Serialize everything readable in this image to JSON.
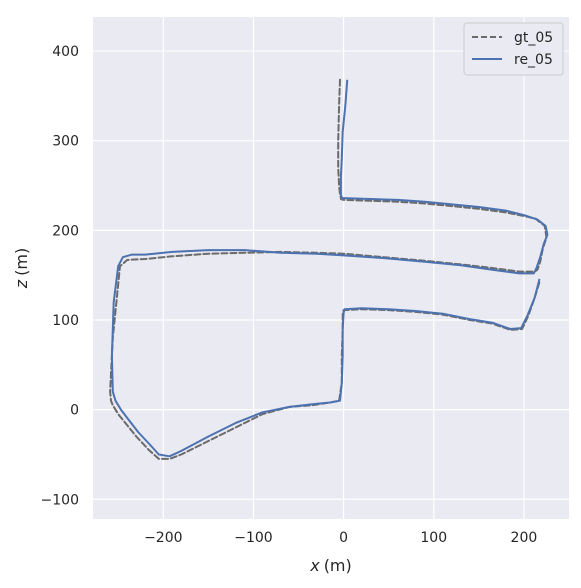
{
  "chart_data": {
    "type": "line",
    "xlabel_var": "x",
    "xlabel_unit": "(m)",
    "ylabel_var": "z",
    "ylabel_unit": "(m)",
    "xlim": [
      -278,
      250
    ],
    "ylim": [
      -122,
      438
    ],
    "xticks": [
      -200,
      -100,
      0,
      100,
      200
    ],
    "yticks": [
      -100,
      0,
      100,
      200,
      300,
      400
    ],
    "grid": true,
    "legend_position": "top-right",
    "background": "#eaeaf2",
    "series": [
      {
        "name": "gt_05",
        "style": "dashed",
        "color": "#6b6b6b",
        "x": [
          -4,
          -5,
          -6,
          -6,
          -5,
          -4,
          -3,
          -3,
          0,
          30,
          60,
          90,
          120,
          150,
          180,
          200,
          213,
          223,
          225,
          221,
          218,
          215,
          212,
          195,
          165,
          130,
          90,
          45,
          0,
          -30,
          -70,
          -110,
          -150,
          -190,
          -220,
          -240,
          -248,
          -252,
          -256,
          -258,
          -259,
          -258,
          -256,
          -250,
          -242,
          -230,
          -216,
          -205,
          -193,
          -180,
          -150,
          -120,
          -90,
          -60,
          -35,
          -15,
          -5,
          -2,
          -2,
          -1,
          -1,
          0,
          20,
          50,
          80,
          110,
          140,
          165,
          185,
          198,
          205,
          212,
          218
        ],
        "y": [
          368,
          340,
          300,
          270,
          250,
          240,
          236,
          235,
          234,
          233,
          232,
          230,
          227,
          224,
          220,
          216,
          213,
          205,
          192,
          180,
          165,
          156,
          154,
          154,
          158,
          162,
          166,
          170,
          174,
          175,
          176,
          175,
          174,
          171,
          168,
          167,
          160,
          120,
          80,
          40,
          20,
          10,
          5,
          -5,
          -15,
          -30,
          -45,
          -55,
          -55,
          -50,
          -35,
          -20,
          -5,
          3,
          5,
          8,
          10,
          30,
          60,
          90,
          108,
          111,
          112,
          111,
          109,
          106,
          100,
          96,
          89,
          90,
          105,
          125,
          145
        ]
      },
      {
        "name": "re_05",
        "style": "solid",
        "color": "#4c72b0",
        "x": [
          4,
          2,
          -1,
          -2,
          -3,
          -3,
          -2,
          0,
          30,
          60,
          90,
          120,
          150,
          180,
          200,
          215,
          224,
          226,
          222,
          218,
          214,
          211,
          195,
          165,
          130,
          90,
          45,
          0,
          -30,
          -70,
          -110,
          -150,
          -190,
          -220,
          -235,
          -245,
          -250,
          -255,
          -257,
          -256,
          -253,
          -247,
          -238,
          -228,
          -214,
          -205,
          -193,
          -180,
          -150,
          -120,
          -90,
          -60,
          -35,
          -15,
          -4,
          -2,
          -1,
          -1,
          0,
          1,
          20,
          50,
          80,
          110,
          140,
          165,
          185,
          197,
          204,
          212,
          217
        ],
        "y": [
          367,
          340,
          310,
          280,
          260,
          240,
          236,
          236,
          235,
          234,
          232,
          229,
          226,
          222,
          217,
          212,
          205,
          195,
          185,
          170,
          158,
          152,
          152,
          156,
          161,
          165,
          169,
          172,
          174,
          175,
          178,
          178,
          176,
          173,
          173,
          170,
          160,
          120,
          60,
          20,
          10,
          0,
          -12,
          -25,
          -40,
          -50,
          -52,
          -46,
          -30,
          -15,
          -3,
          3,
          6,
          8,
          10,
          30,
          60,
          90,
          108,
          112,
          113,
          112,
          110,
          107,
          101,
          97,
          90,
          91,
          105,
          125,
          145
        ]
      }
    ]
  }
}
